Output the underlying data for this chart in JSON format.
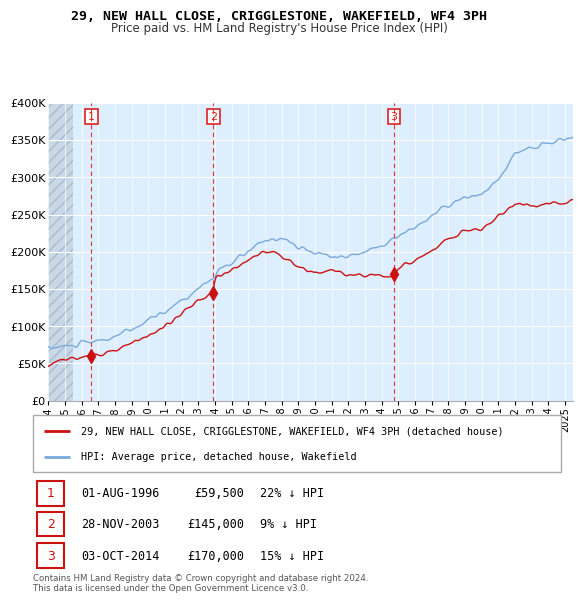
{
  "title": "29, NEW HALL CLOSE, CRIGGLESTONE, WAKEFIELD, WF4 3PH",
  "subtitle": "Price paid vs. HM Land Registry's House Price Index (HPI)",
  "ylim": [
    0,
    400000
  ],
  "yticks": [
    0,
    50000,
    100000,
    150000,
    200000,
    250000,
    300000,
    350000,
    400000
  ],
  "ytick_labels": [
    "£0",
    "£50K",
    "£100K",
    "£150K",
    "£200K",
    "£250K",
    "£300K",
    "£350K",
    "£400K"
  ],
  "xlim_start": 1994.0,
  "xlim_end": 2025.5,
  "hpi_color": "#7aaadd",
  "price_color": "#cc1111",
  "dashed_line_color": "#dd2222",
  "sale_points": [
    {
      "year": 1996.583,
      "price": 59500,
      "label": "1"
    },
    {
      "year": 2003.91,
      "price": 145000,
      "label": "2"
    },
    {
      "year": 2014.75,
      "price": 170000,
      "label": "3"
    }
  ],
  "legend_label_price": "29, NEW HALL CLOSE, CRIGGLESTONE, WAKEFIELD, WF4 3PH (detached house)",
  "legend_label_hpi": "HPI: Average price, detached house, Wakefield",
  "table_rows": [
    {
      "num": "1",
      "date": "01-AUG-1996",
      "price": "£59,500",
      "hpi": "22% ↓ HPI"
    },
    {
      "num": "2",
      "date": "28-NOV-2003",
      "price": "£145,000",
      "hpi": "9% ↓ HPI"
    },
    {
      "num": "3",
      "date": "03-OCT-2014",
      "price": "£170,000",
      "hpi": "15% ↓ HPI"
    }
  ],
  "footnote": "Contains HM Land Registry data © Crown copyright and database right 2024.\nThis data is licensed under the Open Government Licence v3.0.",
  "plot_bg_color": "#ddeeff",
  "hatch_end": 1995.5
}
